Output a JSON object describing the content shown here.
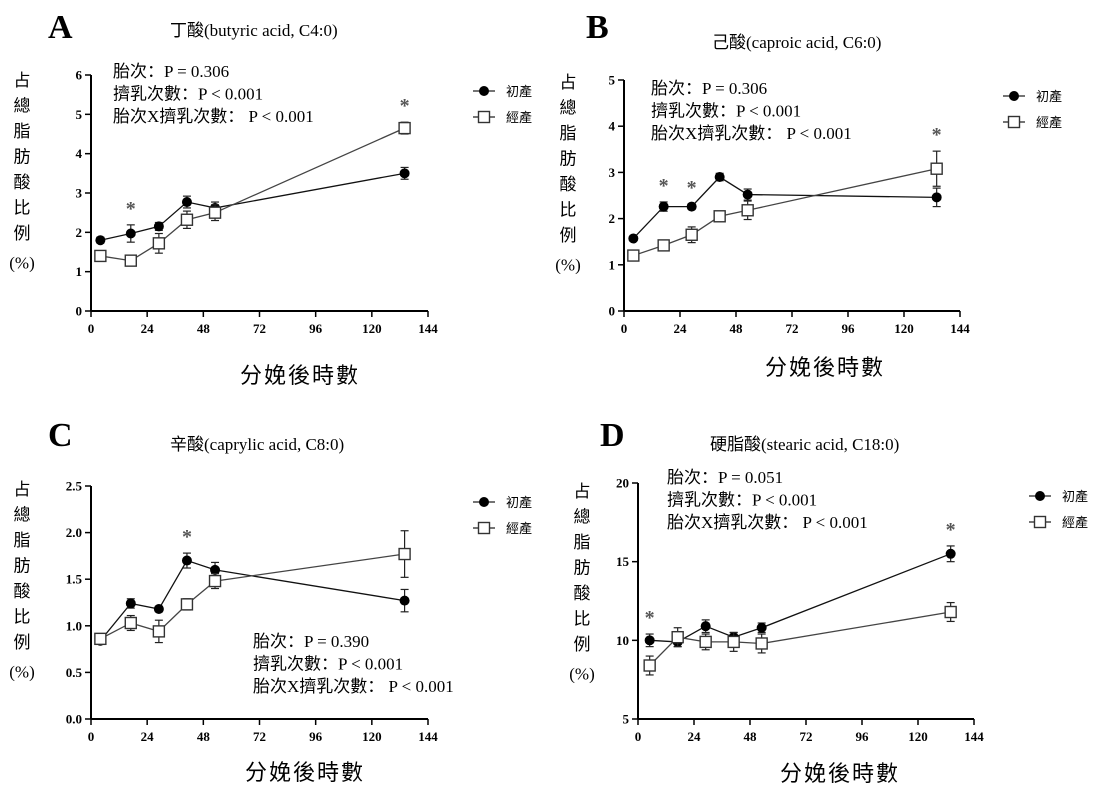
{
  "legend": [
    "初產",
    "經產"
  ],
  "chart_data": [
    {
      "type": "line",
      "panel": "A",
      "title": "丁酸(butyric acid, C4:0)",
      "xlabel": "分娩後時數",
      "ylabel": [
        "占",
        "總",
        "脂",
        "肪",
        "酸",
        "比",
        "例",
        "(%)"
      ],
      "xlim": [
        0,
        144
      ],
      "ylim": [
        0,
        6
      ],
      "xticks": [
        "0",
        "24",
        "48",
        "72",
        "96",
        "120",
        "144"
      ],
      "yticks": [
        "0",
        "1",
        "2",
        "3",
        "4",
        "5",
        "6"
      ],
      "stats": [
        "胎次：P = 0.306",
        "擠乳次數：P < 0.001",
        "胎次X擠乳次數： P < 0.001"
      ],
      "significance_x": [
        17,
        134
      ],
      "series": [
        {
          "name": "初產",
          "x": [
            4,
            17,
            29,
            41,
            53,
            134
          ],
          "y": [
            1.8,
            1.97,
            2.15,
            2.77,
            2.62,
            3.5
          ],
          "err": [
            0.07,
            0.22,
            0.1,
            0.15,
            0.15,
            0.15
          ]
        },
        {
          "name": "經產",
          "x": [
            4,
            17,
            29,
            41,
            53,
            134
          ],
          "y": [
            1.4,
            1.28,
            1.72,
            2.32,
            2.5,
            4.65
          ],
          "err": [
            0.12,
            0.08,
            0.25,
            0.22,
            0.2,
            0.15
          ]
        }
      ]
    },
    {
      "type": "line",
      "panel": "B",
      "title": "己酸(caproic acid, C6:0)",
      "xlabel": "分娩後時數",
      "ylabel": [
        "占",
        "總",
        "脂",
        "肪",
        "酸",
        "比",
        "例",
        "(%)"
      ],
      "xlim": [
        0,
        144
      ],
      "ylim": [
        0,
        5
      ],
      "xticks": [
        "0",
        "24",
        "48",
        "72",
        "96",
        "120",
        "144"
      ],
      "yticks": [
        "0",
        "1",
        "2",
        "3",
        "4",
        "5"
      ],
      "stats": [
        "胎次：P = 0.306",
        "擠乳次數：P < 0.001",
        "胎次X擠乳次數： P < 0.001"
      ],
      "significance_x": [
        17,
        29,
        134
      ],
      "series": [
        {
          "name": "初產",
          "x": [
            4,
            17,
            29,
            41,
            53,
            134
          ],
          "y": [
            1.57,
            2.26,
            2.26,
            2.9,
            2.52,
            2.46
          ],
          "err": [
            0.05,
            0.1,
            0.06,
            0.08,
            0.12,
            0.2
          ]
        },
        {
          "name": "經產",
          "x": [
            4,
            17,
            29,
            41,
            53,
            134
          ],
          "y": [
            1.2,
            1.42,
            1.65,
            2.05,
            2.18,
            3.08
          ],
          "err": [
            0.07,
            0.05,
            0.17,
            0.08,
            0.2,
            0.38
          ]
        }
      ]
    },
    {
      "type": "line",
      "panel": "C",
      "title": "辛酸(caprylic acid, C8:0)",
      "xlabel": "分娩後時數",
      "ylabel": [
        "占",
        "總",
        "脂",
        "肪",
        "酸",
        "比",
        "例",
        "(%)"
      ],
      "xlim": [
        0,
        144
      ],
      "ylim": [
        0,
        2.5
      ],
      "xticks": [
        "0",
        "24",
        "48",
        "72",
        "96",
        "120",
        "144"
      ],
      "yticks": [
        "0.0",
        "0.5",
        "1.0",
        "1.5",
        "2.0",
        "2.5"
      ],
      "stats": [
        "胎次：P = 0.390",
        "擠乳次數：P < 0.001",
        "胎次X擠乳次數： P < 0.001"
      ],
      "significance_x": [
        41
      ],
      "series": [
        {
          "name": "初產",
          "x": [
            4,
            17,
            29,
            41,
            53,
            134
          ],
          "y": [
            0.84,
            1.24,
            1.18,
            1.7,
            1.6,
            1.27
          ],
          "err": [
            0.03,
            0.05,
            0.03,
            0.08,
            0.08,
            0.12
          ]
        },
        {
          "name": "經產",
          "x": [
            4,
            17,
            29,
            41,
            53,
            134
          ],
          "y": [
            0.86,
            1.03,
            0.94,
            1.23,
            1.48,
            1.77
          ],
          "err": [
            0.04,
            0.08,
            0.12,
            0.06,
            0.08,
            0.25
          ]
        }
      ]
    },
    {
      "type": "line",
      "panel": "D",
      "title": "硬脂酸(stearic acid, C18:0)",
      "xlabel": "分娩後時數",
      "ylabel": [
        "占",
        "總",
        "脂",
        "肪",
        "酸",
        "比",
        "例",
        "(%)"
      ],
      "xlim": [
        0,
        144
      ],
      "ylim": [
        5,
        20
      ],
      "xticks": [
        "0",
        "24",
        "48",
        "72",
        "96",
        "120",
        "144"
      ],
      "yticks": [
        "5",
        "10",
        "15",
        "20"
      ],
      "stats": [
        "胎次：P = 0.051",
        "擠乳次數：P < 0.001",
        "胎次X擠乳次數： P < 0.001"
      ],
      "significance_x": [
        5,
        134
      ],
      "series": [
        {
          "name": "初產",
          "x": [
            5,
            17,
            29,
            41,
            53,
            134
          ],
          "y": [
            10.0,
            9.9,
            10.9,
            10.2,
            10.8,
            15.5
          ],
          "err": [
            0.4,
            0.3,
            0.4,
            0.3,
            0.3,
            0.5
          ]
        },
        {
          "name": "經產",
          "x": [
            5,
            17,
            29,
            41,
            53,
            134
          ],
          "y": [
            8.4,
            10.2,
            9.9,
            9.9,
            9.8,
            11.8
          ],
          "err": [
            0.6,
            0.6,
            0.5,
            0.6,
            0.6,
            0.6
          ]
        }
      ]
    }
  ]
}
